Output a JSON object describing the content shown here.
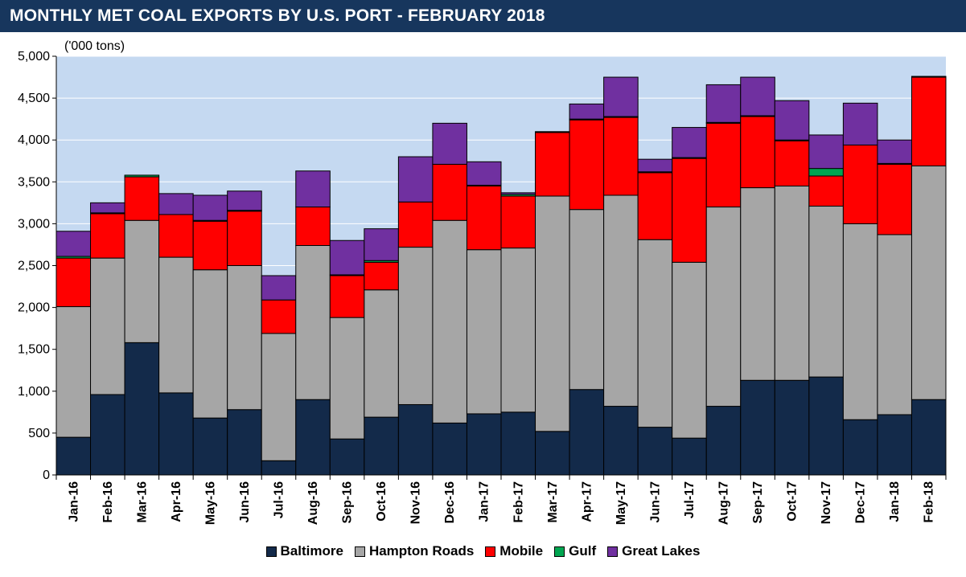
{
  "header": {
    "title": "MONTHLY MET COAL EXPORTS BY U.S. PORT - FEBRUARY 2018"
  },
  "chart_data": {
    "type": "bar",
    "stacked": true,
    "unit_label": "('000 tons)",
    "ylim": [
      0,
      5000
    ],
    "yticks": [
      "0",
      "500",
      "1,000",
      "1,500",
      "2,000",
      "2,500",
      "3,000",
      "3,500",
      "4,000",
      "4,500",
      "5,000"
    ],
    "ytick_values": [
      0,
      500,
      1000,
      1500,
      2000,
      2500,
      3000,
      3500,
      4000,
      4500,
      5000
    ],
    "grid": true,
    "legend_position": "bottom",
    "categories": [
      "Jan-16",
      "Feb-16",
      "Mar-16",
      "Apr-16",
      "May-16",
      "Jun-16",
      "Jul-16",
      "Aug-16",
      "Sep-16",
      "Oct-16",
      "Nov-16",
      "Dec-16",
      "Jan-17",
      "Feb-17",
      "Mar-17",
      "Apr-17",
      "May-17",
      "Jun-17",
      "Jul-17",
      "Aug-17",
      "Sep-17",
      "Oct-17",
      "Nov-17",
      "Dec-17",
      "Jan-18",
      "Feb-18"
    ],
    "series": [
      {
        "name": "Baltimore",
        "color": "#132a4a",
        "values": [
          450,
          960,
          1580,
          980,
          680,
          780,
          170,
          900,
          430,
          690,
          840,
          620,
          730,
          750,
          520,
          1020,
          820,
          570,
          440,
          820,
          1130,
          1130,
          1170,
          660,
          720,
          900
        ]
      },
      {
        "name": "Hampton Roads",
        "color": "#a6a6a6",
        "values": [
          1560,
          1630,
          1460,
          1620,
          1770,
          1720,
          1520,
          1840,
          1450,
          1520,
          1880,
          2420,
          1960,
          1960,
          2810,
          2150,
          2520,
          2240,
          2100,
          2380,
          2300,
          2320,
          2040,
          2340,
          2150,
          2790
        ]
      },
      {
        "name": "Mobile",
        "color": "#ff0000",
        "values": [
          580,
          530,
          520,
          510,
          580,
          650,
          400,
          460,
          500,
          330,
          540,
          670,
          760,
          620,
          760,
          1070,
          930,
          800,
          1240,
          1000,
          850,
          540,
          360,
          940,
          840,
          1060
        ]
      },
      {
        "name": "Gulf",
        "color": "#00a651",
        "values": [
          20,
          10,
          20,
          0,
          10,
          10,
          0,
          0,
          10,
          20,
          0,
          0,
          10,
          20,
          10,
          10,
          10,
          10,
          10,
          10,
          10,
          10,
          90,
          0,
          10,
          10
        ]
      },
      {
        "name": "Great Lakes",
        "color": "#7030a0",
        "values": [
          300,
          120,
          0,
          250,
          300,
          230,
          290,
          430,
          410,
          380,
          540,
          490,
          280,
          20,
          0,
          180,
          470,
          150,
          360,
          450,
          460,
          470,
          400,
          500,
          280,
          0
        ]
      }
    ]
  }
}
